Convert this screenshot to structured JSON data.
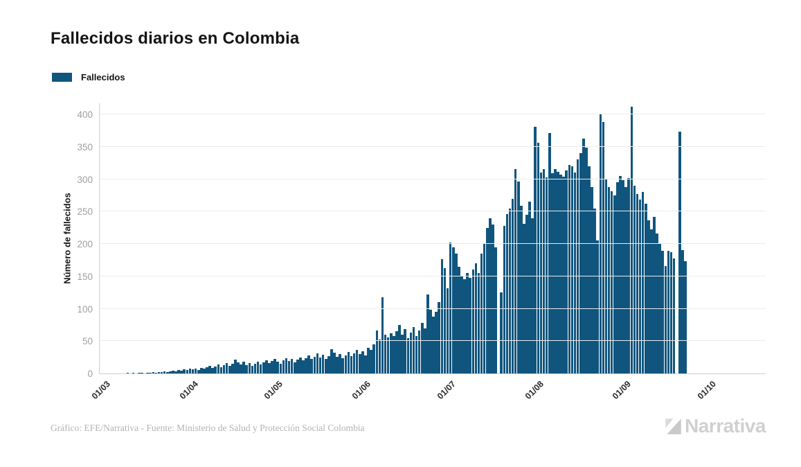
{
  "title": "Fallecidos diarios en Colombia",
  "legend": {
    "label": "Fallecidos",
    "swatch_color": "#10557D"
  },
  "y_axis": {
    "title": "Número de fallecidos",
    "ticks": [
      0,
      50,
      100,
      150,
      200,
      250,
      300,
      350,
      400
    ]
  },
  "x_axis": {
    "tick_labels": [
      "01/03",
      "01/04",
      "01/05",
      "01/06",
      "01/07",
      "01/08",
      "01/09",
      "01/10"
    ],
    "tick_day_offsets": [
      0,
      31,
      61,
      92,
      122,
      153,
      184,
      214
    ],
    "total_days": 214
  },
  "footer": {
    "source_text": "Gráfico: EFE/Narrativa - Fuente: Ministerio de Salud y Protección Social Colombia"
  },
  "branding": {
    "logo_text": "Narrativa",
    "logo_icon": "narrativa-n-icon"
  },
  "colors": {
    "bar": "#10557D",
    "grid": "#ececec",
    "axis_line": "#cfcfcf",
    "y_tick_text": "#9e9e9e",
    "x_tick_text": "#2b2b2b",
    "title_text": "#141414",
    "footer_text": "#b3b3b3",
    "logo_text": "#d0d0d0"
  },
  "chart_data": {
    "type": "bar",
    "title": "Fallecidos diarios en Colombia",
    "xlabel": "",
    "ylabel": "Número de fallecidos",
    "series_name": "Fallecidos",
    "x_unit": "day",
    "x_start_label": "01/03",
    "x_end_label": "01/10",
    "ylim": [
      0,
      420
    ],
    "grid": true,
    "legend_position": "top-left",
    "values": [
      0,
      0,
      0,
      0,
      0,
      0,
      0,
      0,
      1,
      0,
      1,
      0,
      1,
      1,
      0,
      1,
      1,
      2,
      1,
      2,
      2,
      3,
      2,
      3,
      4,
      3,
      5,
      4,
      6,
      5,
      7,
      6,
      8,
      5,
      9,
      7,
      10,
      12,
      9,
      11,
      14,
      10,
      13,
      16,
      12,
      15,
      21,
      17,
      14,
      18,
      13,
      16,
      12,
      15,
      18,
      14,
      17,
      20,
      16,
      19,
      22,
      18,
      15,
      20,
      24,
      19,
      23,
      17,
      21,
      25,
      20,
      24,
      28,
      22,
      26,
      31,
      25,
      29,
      23,
      27,
      37,
      32,
      26,
      30,
      24,
      28,
      33,
      27,
      31,
      36,
      30,
      34,
      28,
      40,
      36,
      45,
      66,
      52,
      118,
      60,
      56,
      62,
      58,
      65,
      75,
      60,
      68,
      55,
      63,
      72,
      58,
      66,
      78,
      70,
      122,
      98,
      88,
      95,
      110,
      177,
      163,
      132,
      202,
      195,
      185,
      165,
      150,
      145,
      155,
      148,
      160,
      170,
      155,
      185,
      200,
      225,
      240,
      230,
      195,
      0,
      125,
      228,
      246,
      255,
      270,
      316,
      296,
      259,
      231,
      245,
      265,
      240,
      381,
      356,
      310,
      316,
      303,
      371,
      309,
      316,
      311,
      307,
      304,
      313,
      322,
      320,
      310,
      330,
      340,
      363,
      349,
      320,
      288,
      255,
      205,
      401,
      388,
      300,
      288,
      281,
      275,
      295,
      305,
      298,
      288,
      302,
      412,
      290,
      277,
      268,
      280,
      262,
      236,
      223,
      242,
      216,
      200,
      189,
      166,
      189,
      187,
      178,
      0,
      373,
      190,
      173
    ]
  }
}
